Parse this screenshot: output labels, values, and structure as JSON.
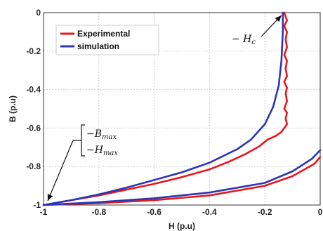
{
  "chart_data": {
    "type": "line",
    "xlabel": "H (p.u)",
    "ylabel": "B (p.u)",
    "xlim": [
      -1,
      0
    ],
    "ylim": [
      -1,
      0
    ],
    "x_ticks": [
      "-1",
      "-0.8",
      "-0.6",
      "-0.4",
      "-0.2",
      "0"
    ],
    "y_ticks": [
      "0",
      "-0.2",
      "-0.4",
      "-0.6",
      "-0.8",
      "-1"
    ],
    "x_tick_values": [
      -1,
      -0.8,
      -0.6,
      -0.4,
      -0.2,
      0
    ],
    "y_tick_values": [
      0,
      -0.2,
      -0.4,
      -0.6,
      -0.8,
      -1
    ],
    "grid": true,
    "legend_position": "top-left",
    "series": [
      {
        "name": "Experimental",
        "color": "#e8161b",
        "upper_branch": {
          "x": [
            -1.0,
            -0.9,
            -0.8,
            -0.7,
            -0.6,
            -0.5,
            -0.4,
            -0.33,
            -0.27,
            -0.22,
            -0.19,
            -0.16,
            -0.14,
            -0.13,
            -0.12,
            -0.125,
            -0.12,
            -0.13,
            -0.12,
            -0.125,
            -0.12,
            -0.13,
            -0.12,
            -0.125,
            -0.12,
            -0.13,
            -0.12,
            -0.125,
            -0.12,
            -0.13,
            -0.12,
            -0.13
          ],
          "y": [
            -1.0,
            -0.975,
            -0.95,
            -0.92,
            -0.89,
            -0.855,
            -0.815,
            -0.775,
            -0.735,
            -0.695,
            -0.66,
            -0.64,
            -0.62,
            -0.6,
            -0.58,
            -0.55,
            -0.52,
            -0.5,
            -0.46,
            -0.42,
            -0.39,
            -0.36,
            -0.33,
            -0.29,
            -0.25,
            -0.22,
            -0.18,
            -0.14,
            -0.1,
            -0.07,
            -0.04,
            0.0
          ]
        },
        "lower_branch": {
          "x": [
            -1.0,
            -0.8,
            -0.6,
            -0.4,
            -0.2,
            -0.1,
            -0.02,
            0.0
          ],
          "y": [
            -1.0,
            -0.99,
            -0.975,
            -0.95,
            -0.9,
            -0.85,
            -0.785,
            -0.75
          ]
        }
      },
      {
        "name": "simulation",
        "color": "#2b35b5",
        "upper_branch": {
          "x": [
            -1.0,
            -0.9,
            -0.8,
            -0.7,
            -0.6,
            -0.5,
            -0.4,
            -0.3,
            -0.25,
            -0.2,
            -0.17,
            -0.15,
            -0.14,
            -0.135,
            -0.135
          ],
          "y": [
            -1.0,
            -0.975,
            -0.945,
            -0.91,
            -0.87,
            -0.83,
            -0.78,
            -0.71,
            -0.66,
            -0.58,
            -0.49,
            -0.38,
            -0.25,
            -0.1,
            0.0
          ]
        },
        "lower_branch": {
          "x": [
            -1.0,
            -0.8,
            -0.6,
            -0.4,
            -0.2,
            -0.1,
            -0.03,
            0.0
          ],
          "y": [
            -1.0,
            -0.985,
            -0.965,
            -0.935,
            -0.885,
            -0.825,
            -0.76,
            -0.715
          ]
        }
      }
    ],
    "annotations": [
      {
        "id": "hc",
        "lines": [
          "− H",
          "c"
        ],
        "point": [
          -0.13,
          0.0
        ],
        "text_at": [
          -0.27,
          -0.13
        ]
      },
      {
        "id": "max",
        "lines": [
          "−B",
          "max",
          "−H",
          "max"
        ],
        "point": [
          -1.0,
          -1.0
        ],
        "text_at": [
          -0.83,
          -0.67
        ]
      }
    ]
  }
}
